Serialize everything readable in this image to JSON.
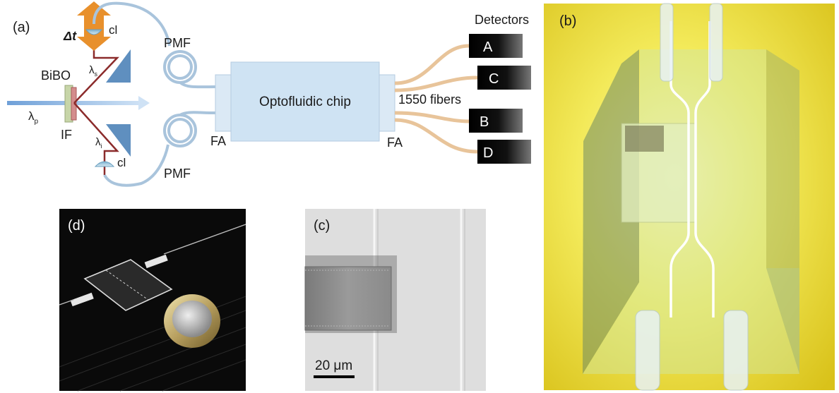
{
  "panel_a": {
    "panel_label": "(a)",
    "pump_label": "λ",
    "pump_sub": "p",
    "crystal_label": "BiBO",
    "filter_label": "IF",
    "signal_label": "λ",
    "signal_sub": "s",
    "idler_label": "λ",
    "idler_sub": "i",
    "delay_label": "Δt",
    "cl_top": "cl",
    "cl_bottom": "cl",
    "pmf_top": "PMF",
    "pmf_bottom": "PMF",
    "fa_left": "FA",
    "fa_right": "FA",
    "chip_label": "Optofluidic chip",
    "fibers_label": "1550 fibers",
    "detectors_title": "Detectors",
    "detectors": [
      "A",
      "C",
      "B",
      "D"
    ]
  },
  "panel_b": {
    "panel_label": "(b)"
  },
  "panel_c": {
    "panel_label": "(c)",
    "scale_bar": "20 μm"
  },
  "panel_d": {
    "panel_label": "(d)"
  },
  "colors": {
    "pump_beam": "#8fb6e0",
    "photon_path": "#8b2b2b",
    "fiber": "#a9c4dc",
    "chip": "#cfe3f3",
    "output_fiber": "#e8c49a",
    "delay_arrow": "#e8902c",
    "detector": "#111111"
  }
}
